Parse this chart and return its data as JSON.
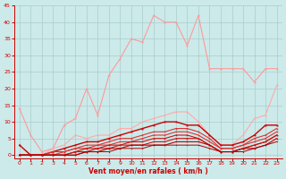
{
  "xlabel": "Vent moyen/en rafales ( km/h )",
  "bg_color": "#cceaea",
  "grid_color": "#aacccc",
  "x": [
    0,
    1,
    2,
    3,
    4,
    5,
    6,
    7,
    8,
    9,
    10,
    11,
    12,
    13,
    14,
    15,
    16,
    17,
    18,
    19,
    20,
    21,
    22,
    23
  ],
  "series": [
    {
      "color": "#ff9999",
      "linewidth": 0.8,
      "markersize": 2.5,
      "y": [
        14,
        6,
        1,
        2,
        9,
        11,
        20,
        12,
        24,
        29,
        35,
        34,
        42,
        40,
        40,
        33,
        42,
        26,
        26,
        26,
        26,
        22,
        26,
        26
      ]
    },
    {
      "color": "#ffaaaa",
      "linewidth": 0.8,
      "markersize": 2.5,
      "y": [
        3,
        0,
        0,
        2,
        3,
        6,
        5,
        6,
        6,
        8,
        8,
        10,
        11,
        12,
        13,
        13,
        10,
        6,
        3,
        3,
        6,
        11,
        12,
        21
      ]
    },
    {
      "color": "#cc0000",
      "linewidth": 1.0,
      "markersize": 2.5,
      "y": [
        3,
        0,
        0,
        1,
        2,
        3,
        4,
        4,
        5,
        6,
        7,
        8,
        9,
        10,
        10,
        9,
        9,
        6,
        3,
        3,
        4,
        6,
        9,
        9
      ]
    },
    {
      "color": "#dd3333",
      "linewidth": 0.8,
      "markersize": 2.0,
      "y": [
        0,
        0,
        0,
        1,
        1,
        2,
        3,
        3,
        4,
        5,
        5,
        6,
        7,
        7,
        8,
        8,
        7,
        5,
        2,
        2,
        3,
        5,
        6,
        8
      ]
    },
    {
      "color": "#dd3333",
      "linewidth": 0.8,
      "markersize": 2.0,
      "y": [
        0,
        0,
        0,
        0,
        1,
        2,
        2,
        3,
        3,
        4,
        4,
        5,
        6,
        6,
        7,
        7,
        6,
        4,
        2,
        2,
        3,
        4,
        5,
        7
      ]
    },
    {
      "color": "#cc1111",
      "linewidth": 0.8,
      "markersize": 2.0,
      "y": [
        0,
        0,
        0,
        0,
        0,
        1,
        2,
        2,
        3,
        3,
        4,
        4,
        5,
        5,
        6,
        6,
        5,
        3,
        1,
        1,
        2,
        3,
        4,
        6
      ]
    },
    {
      "color": "#cc1111",
      "linewidth": 0.8,
      "markersize": 2.0,
      "y": [
        0,
        0,
        0,
        0,
        0,
        1,
        1,
        2,
        2,
        3,
        3,
        3,
        4,
        4,
        5,
        5,
        5,
        3,
        1,
        1,
        2,
        3,
        4,
        6
      ]
    },
    {
      "color": "#bb0000",
      "linewidth": 0.8,
      "markersize": 2.0,
      "y": [
        0,
        0,
        0,
        0,
        0,
        0,
        1,
        1,
        2,
        2,
        3,
        3,
        3,
        3,
        4,
        4,
        4,
        3,
        1,
        1,
        2,
        2,
        3,
        5
      ]
    },
    {
      "color": "#aa0000",
      "linewidth": 0.7,
      "markersize": 1.5,
      "y": [
        0,
        0,
        0,
        0,
        0,
        0,
        1,
        1,
        1,
        2,
        2,
        2,
        3,
        3,
        3,
        3,
        3,
        2,
        1,
        1,
        1,
        2,
        3,
        4
      ]
    }
  ],
  "ylim": [
    -1,
    45
  ],
  "xlim": [
    -0.5,
    23.5
  ],
  "yticks": [
    0,
    5,
    10,
    15,
    20,
    25,
    30,
    35,
    40,
    45
  ],
  "xticks": [
    0,
    1,
    2,
    3,
    4,
    5,
    6,
    7,
    8,
    9,
    10,
    11,
    12,
    13,
    14,
    15,
    16,
    17,
    18,
    19,
    20,
    21,
    22,
    23
  ],
  "xlabel_color": "#cc0000",
  "tick_color": "#cc0000",
  "axis_color": "#cc0000"
}
